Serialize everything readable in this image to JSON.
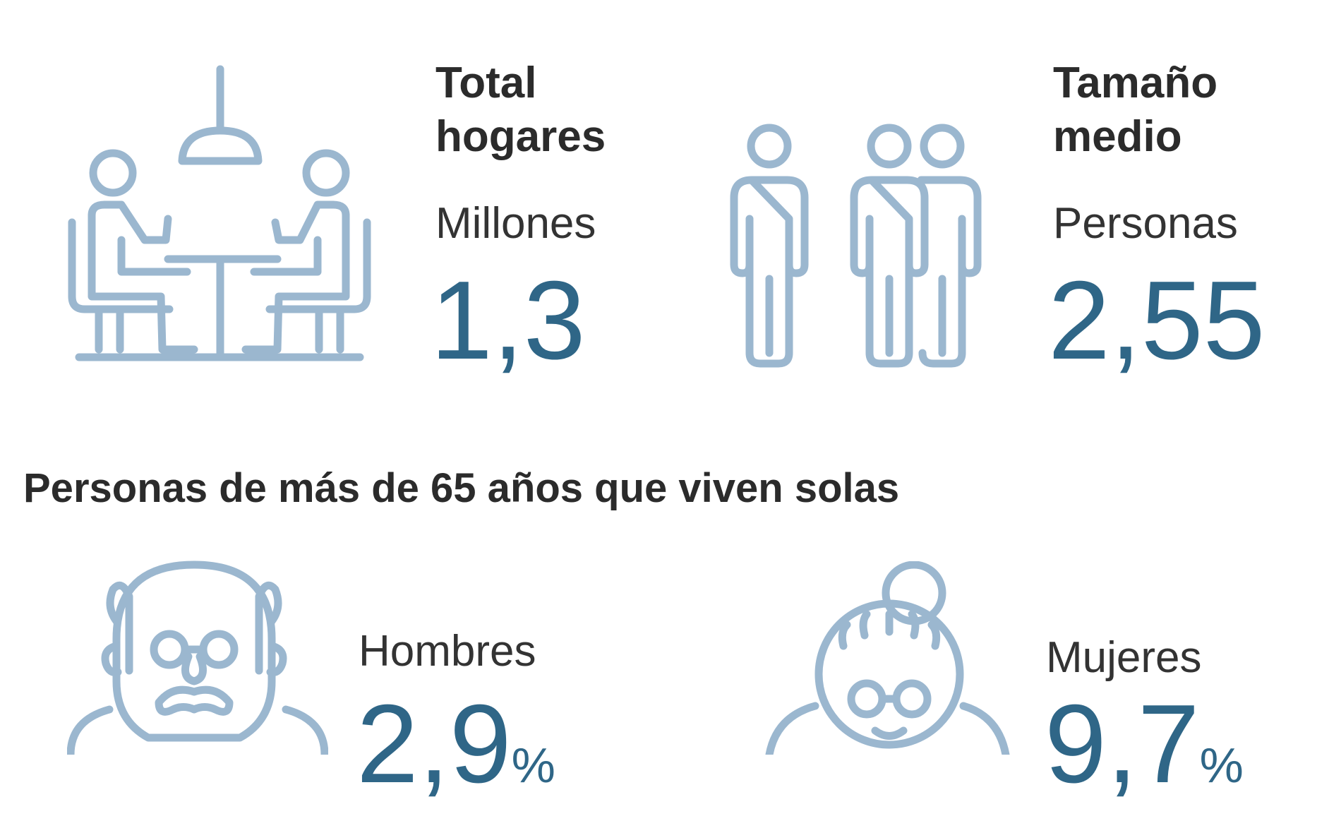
{
  "stats": {
    "households": {
      "title_line1": "Total",
      "title_line2": "hogares",
      "unit": "Millones",
      "value": "1,3",
      "icon": "table-meeting-icon"
    },
    "size": {
      "title_line1": "Tamaño",
      "title_line2": "medio",
      "unit": "Personas",
      "value": "2,55",
      "icon": "people-group-icon"
    }
  },
  "section": {
    "heading": "Personas de más de 65 años que viven solas"
  },
  "gender": {
    "men": {
      "label": "Hombres",
      "value": "2,9",
      "unit": "%",
      "icon": "elderly-man-icon"
    },
    "women": {
      "label": "Mujeres",
      "value": "9,7",
      "unit": "%",
      "icon": "elderly-woman-icon"
    }
  },
  "colors": {
    "icon_stroke": "#9bb7cf",
    "value_color": "#2f6687",
    "title_color": "#2b2b2b"
  }
}
